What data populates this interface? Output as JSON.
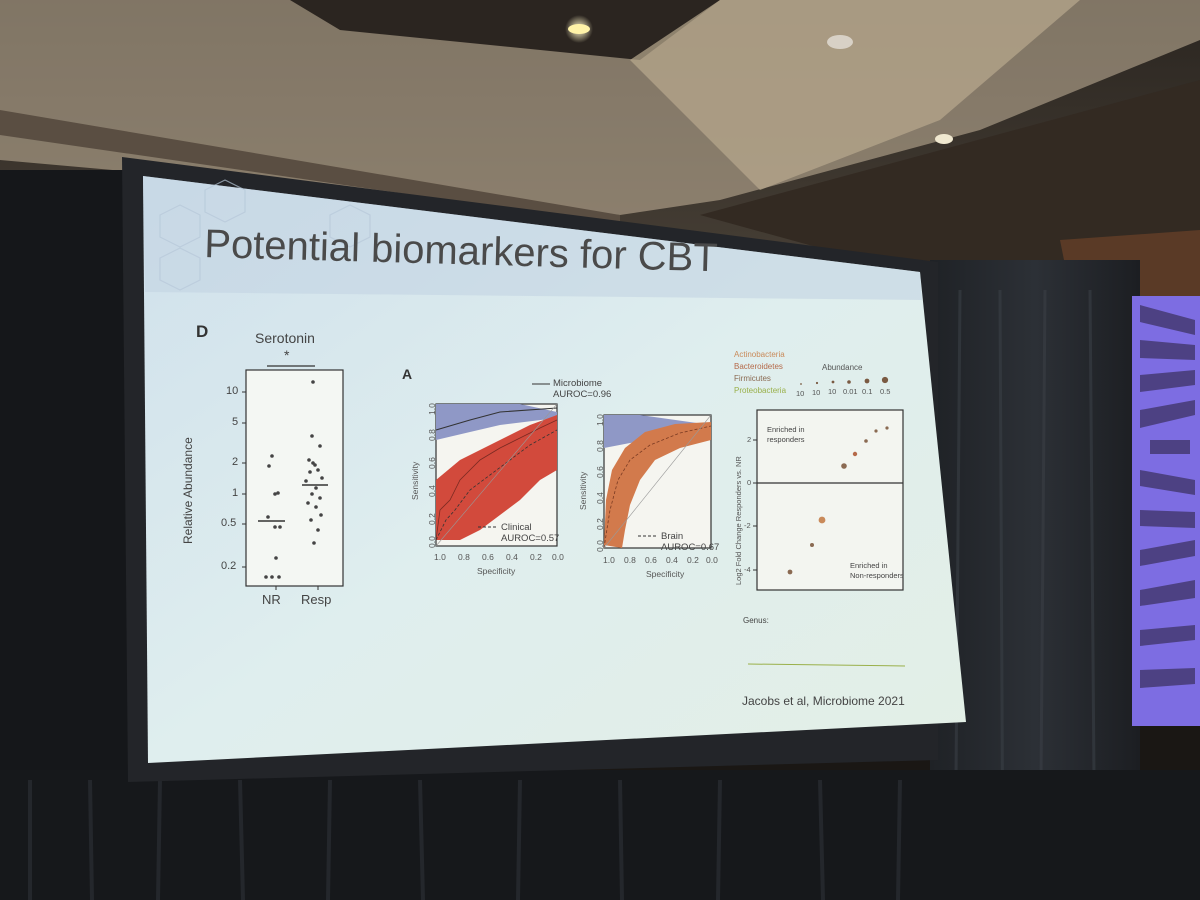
{
  "slide": {
    "title": "Potential biomarkers for CBT",
    "citation": "Jacobs et al, Microbiome 2021"
  },
  "panel_d": {
    "letter": "D",
    "title": "Serotonin",
    "significance": "*",
    "ylabel": "Relative Abundance",
    "yticks": [
      "10",
      "5",
      "2",
      "1",
      "0.5",
      "0.2"
    ],
    "categories": [
      "NR",
      "Resp"
    ]
  },
  "panel_a": {
    "letter": "A",
    "microbiome_legend": "Microbiome",
    "microbiome_auroc": "AUROC=0.96",
    "clinical_legend": "Clinical",
    "clinical_auroc": "AUROC=0.57",
    "brain_legend": "Brain",
    "brain_auroc": "AUROC=0.67",
    "sensitivity_label": "Sensitivity",
    "specificity_label": "Specificity",
    "yticks": [
      "1.0",
      "0.8",
      "0.6",
      "0.4",
      "0.2",
      "0.0"
    ],
    "xticks": [
      "1.0",
      "0.8",
      "0.6",
      "0.4",
      "0.2",
      "0.0"
    ]
  },
  "panel_fc": {
    "phyla": [
      {
        "name": "Actinobacteria",
        "color": "#c98a5a"
      },
      {
        "name": "Bacteroidetes",
        "color": "#b56a4a"
      },
      {
        "name": "Firmicutes",
        "color": "#8a6a52"
      },
      {
        "name": "Proteobacteria",
        "color": "#9ab04a"
      }
    ],
    "abundance_label": "Abundance",
    "abundance_ticks": [
      "10",
      "10",
      "10",
      "0.01",
      "0.1",
      "0.5"
    ],
    "enriched_responders_1": "Enriched in",
    "enriched_responders_2": "responders",
    "enriched_nonresponders_1": "Enriched in",
    "enriched_nonresponders_2": "Non-responders",
    "ylabel": "Log2 Fold Change Responders vs. NR",
    "yticks": [
      "2",
      "0",
      "-2",
      "-4"
    ],
    "genus_label": "Genus:"
  },
  "colors": {
    "slide_bg": "#dde9ec",
    "roc_red": "#d24a3c",
    "roc_blue": "#8f98c6",
    "brain_orange": "#d27a4c"
  }
}
